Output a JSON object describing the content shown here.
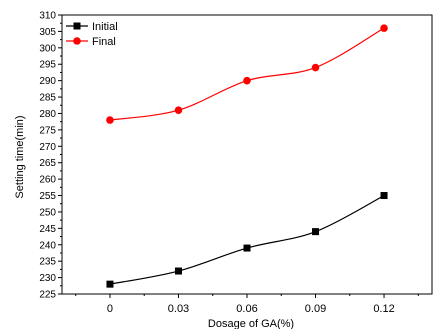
{
  "chart_data": {
    "type": "line",
    "categories": [
      "0",
      "0.03",
      "0.06",
      "0.09",
      "0.12"
    ],
    "x": [
      0,
      0.03,
      0.06,
      0.09,
      0.12
    ],
    "series": [
      {
        "name": "Initial",
        "values": [
          228,
          232,
          239,
          244,
          255
        ],
        "color": "#000000",
        "marker": "square"
      },
      {
        "name": "Final",
        "values": [
          278,
          281,
          290,
          294,
          306
        ],
        "color": "#ff0000",
        "marker": "circle"
      }
    ],
    "title": "",
    "xlabel": "Dosage of GA(%)",
    "ylabel": "Setting time(min)",
    "xlim": [
      -0.021,
      0.141
    ],
    "ylim": [
      225,
      310
    ],
    "yticks": [
      225,
      230,
      235,
      240,
      245,
      250,
      255,
      260,
      265,
      270,
      275,
      280,
      285,
      290,
      295,
      300,
      305,
      310
    ],
    "grid": false,
    "legend_position": "top-left",
    "curve": "smooth"
  }
}
